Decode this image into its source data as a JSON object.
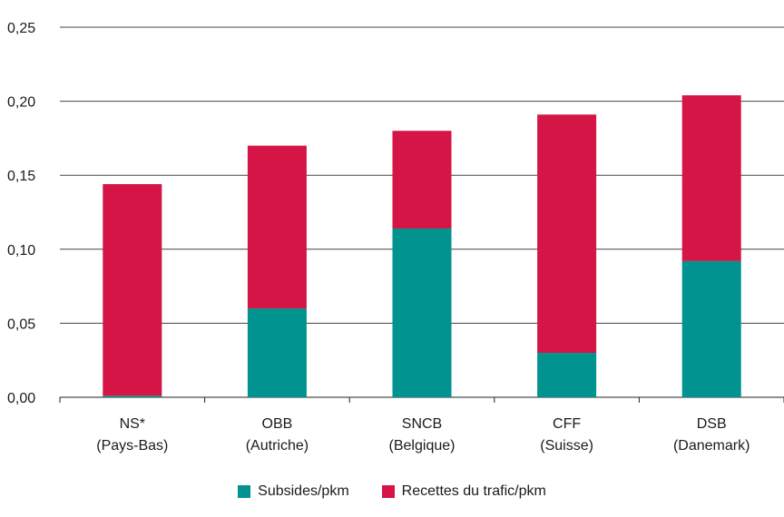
{
  "chart_data": {
    "type": "bar",
    "stacked": true,
    "categories": [
      [
        "NS*",
        "(Pays-Bas)"
      ],
      [
        "OBB",
        "(Autriche)"
      ],
      [
        "SNCB",
        "(Belgique)"
      ],
      [
        "CFF",
        "(Suisse)"
      ],
      [
        "DSB",
        "(Danemark)"
      ]
    ],
    "series": [
      {
        "name": "Subsides/pkm",
        "color": "#00938f",
        "values": [
          0.001,
          0.06,
          0.114,
          0.03,
          0.092
        ]
      },
      {
        "name": "Recettes du trafic/pkm",
        "color": "#d41545",
        "values": [
          0.143,
          0.11,
          0.066,
          0.161,
          0.112
        ]
      }
    ],
    "yticks": [
      "0,00",
      "0,05",
      "0,10",
      "0,15",
      "0,20",
      "0,25"
    ],
    "ylim": [
      0,
      0.25
    ],
    "grid": true,
    "legend_position": "bottom"
  }
}
